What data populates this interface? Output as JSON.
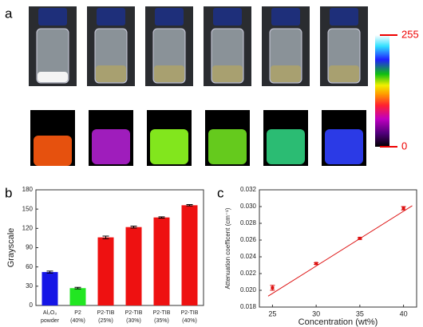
{
  "panel_labels": [
    "a",
    "b",
    "c"
  ],
  "colorbar": {
    "max": 255,
    "min": 0
  },
  "chart_data": [
    {
      "type": "bar",
      "ylabel": "Grayscale",
      "categories": [
        [
          "Al₂O₃",
          "powder"
        ],
        [
          "P2",
          "(40%)"
        ],
        [
          "P2-TIB",
          "(25%)"
        ],
        [
          "P2-TIB",
          "(30%)"
        ],
        [
          "P2-TIB",
          "(35%)"
        ],
        [
          "P2-TIB",
          "(40%)"
        ]
      ],
      "values": [
        52,
        27,
        106,
        122,
        137,
        156
      ],
      "errors": [
        1.5,
        1.2,
        2,
        1.5,
        1,
        1
      ],
      "colors": [
        "#1515e6",
        "#22e622",
        "#ee1111",
        "#ee1111",
        "#ee1111",
        "#ee1111"
      ],
      "ylim": [
        0,
        180
      ],
      "yticks": [
        0,
        30,
        60,
        90,
        120,
        150,
        180
      ]
    },
    {
      "type": "scatter",
      "xlabel": "Concentration (wt%)",
      "ylabel": "Attenuation coefficent (cm⁻¹)",
      "x": [
        25,
        30,
        35,
        40
      ],
      "values": [
        0.0203,
        0.0232,
        0.0262,
        0.0298
      ],
      "errors": [
        0.0003,
        0.0001,
        0.0001,
        0.0002
      ],
      "color": "#dd1111",
      "fit": {
        "x": [
          24.5,
          41
        ],
        "y": [
          0.0193,
          0.0301
        ]
      },
      "xlim": [
        23.5,
        41.5
      ],
      "xticks": [
        25,
        30,
        35,
        40
      ],
      "ylim": [
        0.018,
        0.032
      ],
      "yticks": [
        0.018,
        {
          "value": 0.02,
          "label": "0.020"
        },
        0.022,
        0.024,
        0.026,
        0.028,
        {
          "value": 0.03,
          "label": "0.030"
        },
        0.032
      ]
    }
  ]
}
